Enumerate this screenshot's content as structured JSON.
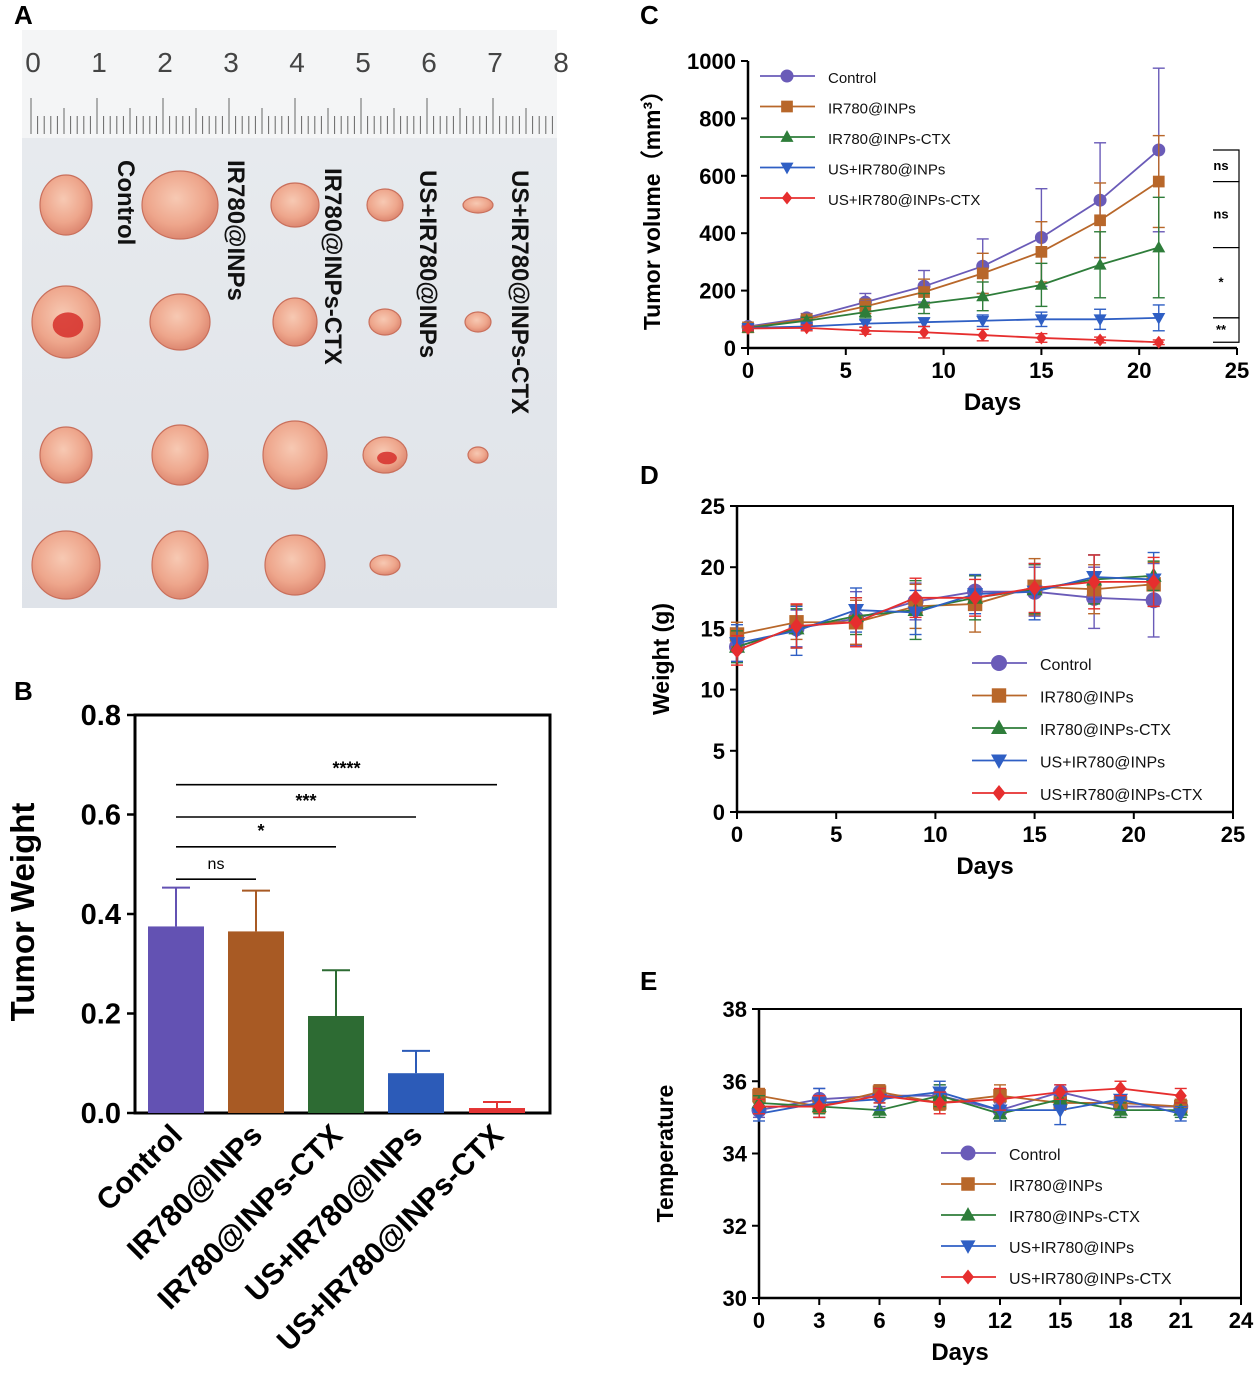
{
  "panel_labels": {
    "a": "A",
    "b": "B",
    "c": "C",
    "d": "D",
    "e": "E"
  },
  "series_names": [
    "Control",
    "IR780@INPs",
    "IR780@INPs-CTX",
    "US+IR780@INPs",
    "US+IR780@INPs-CTX"
  ],
  "series_colors": [
    "#6a5bb8",
    "#b8672a",
    "#2e7d3a",
    "#2f5fc4",
    "#e62e2e"
  ],
  "photo": {
    "ruler_numbers": [
      "0",
      "1",
      "2",
      "3",
      "4",
      "5",
      "6",
      "7",
      "8"
    ],
    "group_labels": [
      "Control",
      "IR780@INPs",
      "IR780@INPs-CTX",
      "US+IR780@INPs",
      "US+IR780@INPs-CTX"
    ],
    "tumors_per_group": [
      4,
      4,
      4,
      4,
      3
    ]
  },
  "chart_data": [
    {
      "id": "B",
      "type": "bar",
      "ylabel": "Tumor Weight",
      "xlabel": "",
      "categories": [
        "Control",
        "IR780@INPs",
        "IR780@INPs-CTX",
        "US+IR780@INPs",
        "US+IR780@INPs-CTX"
      ],
      "values": [
        0.375,
        0.365,
        0.195,
        0.08,
        0.01
      ],
      "errors": [
        0.078,
        0.082,
        0.092,
        0.045,
        0.012
      ],
      "colors": [
        "#6352b3",
        "#a85a24",
        "#2d6b33",
        "#2c5bb8",
        "#e33333"
      ],
      "ylim": [
        0,
        0.8
      ],
      "yticks": [
        "0.0",
        "0.2",
        "0.4",
        "0.6",
        "0.8"
      ],
      "significance": [
        {
          "from": 0,
          "to": 1,
          "label": "ns",
          "y": 0.47
        },
        {
          "from": 0,
          "to": 2,
          "label": "*",
          "y": 0.535
        },
        {
          "from": 0,
          "to": 3,
          "label": "***",
          "y": 0.595
        },
        {
          "from": 0,
          "to": 4,
          "label": "****",
          "y": 0.66
        }
      ]
    },
    {
      "id": "C",
      "type": "line",
      "xlabel": "Days",
      "ylabel": "Tumor volume（mm³）",
      "xlim": [
        0,
        25
      ],
      "ylim": [
        0,
        1000
      ],
      "xticks": [
        "0",
        "5",
        "10",
        "15",
        "20",
        "25"
      ],
      "yticks": [
        "0",
        "200",
        "400",
        "600",
        "800",
        "1000"
      ],
      "x": [
        0,
        3,
        6,
        9,
        12,
        15,
        18,
        21
      ],
      "series": [
        {
          "name": "Control",
          "values": [
            75,
            105,
            160,
            215,
            285,
            385,
            515,
            690
          ],
          "errors": [
            10,
            15,
            30,
            55,
            95,
            170,
            200,
            285
          ]
        },
        {
          "name": "IR780@INPs",
          "values": [
            72,
            100,
            145,
            195,
            260,
            335,
            445,
            580
          ],
          "errors": [
            10,
            12,
            25,
            45,
            70,
            105,
            130,
            160
          ]
        },
        {
          "name": "IR780@INPs-CTX",
          "values": [
            70,
            95,
            125,
            155,
            180,
            220,
            290,
            350
          ],
          "errors": [
            8,
            12,
            20,
            35,
            50,
            75,
            115,
            175
          ]
        },
        {
          "name": "US+IR780@INPs",
          "values": [
            70,
            75,
            85,
            90,
            95,
            100,
            100,
            105
          ],
          "errors": [
            8,
            10,
            12,
            15,
            20,
            25,
            35,
            45
          ]
        },
        {
          "name": "US+IR780@INPs-CTX",
          "values": [
            68,
            70,
            60,
            55,
            45,
            35,
            28,
            20
          ],
          "errors": [
            8,
            10,
            12,
            20,
            20,
            15,
            10,
            8
          ]
        }
      ],
      "brackets": [
        {
          "label": "ns",
          "y1": 690,
          "y2": 580
        },
        {
          "label": "ns",
          "y1": 580,
          "y2": 350
        },
        {
          "label": "*",
          "y1": 350,
          "y2": 105
        },
        {
          "label": "**",
          "y1": 105,
          "y2": 20
        }
      ]
    },
    {
      "id": "D",
      "type": "line",
      "xlabel": "Days",
      "ylabel": "Weight (g)",
      "xlim": [
        0,
        25
      ],
      "ylim": [
        0,
        25
      ],
      "xticks": [
        "0",
        "5",
        "10",
        "15",
        "20",
        "25"
      ],
      "yticks": [
        "0",
        "5",
        "10",
        "15",
        "20",
        "25"
      ],
      "x": [
        0,
        3,
        6,
        9,
        12,
        15,
        18,
        21
      ],
      "series": [
        {
          "name": "Control",
          "values": [
            13.5,
            15.0,
            15.8,
            17.2,
            18.0,
            18.0,
            17.5,
            17.3
          ],
          "errors": [
            1.2,
            1.5,
            2.2,
            1.5,
            1.3,
            2.0,
            2.5,
            3.0
          ]
        },
        {
          "name": "IR780@INPs",
          "values": [
            14.5,
            15.5,
            15.5,
            16.8,
            17.0,
            18.4,
            18.2,
            18.6
          ],
          "errors": [
            1.0,
            1.4,
            1.8,
            1.8,
            2.3,
            2.3,
            2.0,
            1.8
          ]
        },
        {
          "name": "IR780@INPs-CTX",
          "values": [
            13.5,
            15.0,
            16.0,
            16.5,
            17.5,
            18.2,
            19.0,
            19.3
          ],
          "errors": [
            1.3,
            1.6,
            1.5,
            2.4,
            1.8,
            2.0,
            2.0,
            1.2
          ]
        },
        {
          "name": "US+IR780@INPs",
          "values": [
            13.8,
            14.8,
            16.5,
            16.3,
            17.8,
            18.0,
            19.2,
            19.0
          ],
          "errors": [
            1.5,
            2.0,
            1.8,
            1.8,
            1.6,
            2.3,
            1.8,
            2.2
          ]
        },
        {
          "name": "US+IR780@INPs-CTX",
          "values": [
            13.2,
            15.2,
            15.5,
            17.5,
            17.5,
            18.3,
            18.8,
            18.8
          ],
          "errors": [
            1.2,
            1.8,
            2.0,
            1.6,
            1.5,
            2.0,
            2.2,
            2.0
          ]
        }
      ]
    },
    {
      "id": "E",
      "type": "line",
      "xlabel": "Days",
      "ylabel": "Temperature",
      "xlim": [
        0,
        24
      ],
      "ylim": [
        30,
        38
      ],
      "xticks": [
        "0",
        "3",
        "6",
        "9",
        "12",
        "15",
        "18",
        "21",
        "24"
      ],
      "yticks": [
        "30",
        "32",
        "34",
        "36",
        "38"
      ],
      "x": [
        0,
        3,
        6,
        9,
        12,
        15,
        18,
        21
      ],
      "series": [
        {
          "name": "Control",
          "values": [
            35.2,
            35.5,
            35.6,
            35.6,
            35.2,
            35.7,
            35.3,
            35.3
          ],
          "errors": [
            0.2,
            0.3,
            0.3,
            0.3,
            0.2,
            0.2,
            0.3,
            0.2
          ]
        },
        {
          "name": "IR780@INPs",
          "values": [
            35.6,
            35.3,
            35.7,
            35.4,
            35.6,
            35.4,
            35.4,
            35.3
          ],
          "errors": [
            0.2,
            0.3,
            0.2,
            0.2,
            0.3,
            0.2,
            0.2,
            0.2
          ]
        },
        {
          "name": "IR780@INPs-CTX",
          "values": [
            35.4,
            35.3,
            35.2,
            35.6,
            35.1,
            35.5,
            35.2,
            35.2
          ],
          "errors": [
            0.2,
            0.2,
            0.2,
            0.3,
            0.2,
            0.2,
            0.2,
            0.2
          ]
        },
        {
          "name": "US+IR780@INPs",
          "values": [
            35.1,
            35.4,
            35.5,
            35.7,
            35.2,
            35.2,
            35.5,
            35.1
          ],
          "errors": [
            0.2,
            0.4,
            0.3,
            0.3,
            0.3,
            0.4,
            0.3,
            0.2
          ]
        },
        {
          "name": "US+IR780@INPs-CTX",
          "values": [
            35.3,
            35.3,
            35.6,
            35.4,
            35.5,
            35.7,
            35.8,
            35.6
          ],
          "errors": [
            0.2,
            0.3,
            0.2,
            0.3,
            0.3,
            0.2,
            0.2,
            0.2
          ]
        }
      ]
    }
  ]
}
